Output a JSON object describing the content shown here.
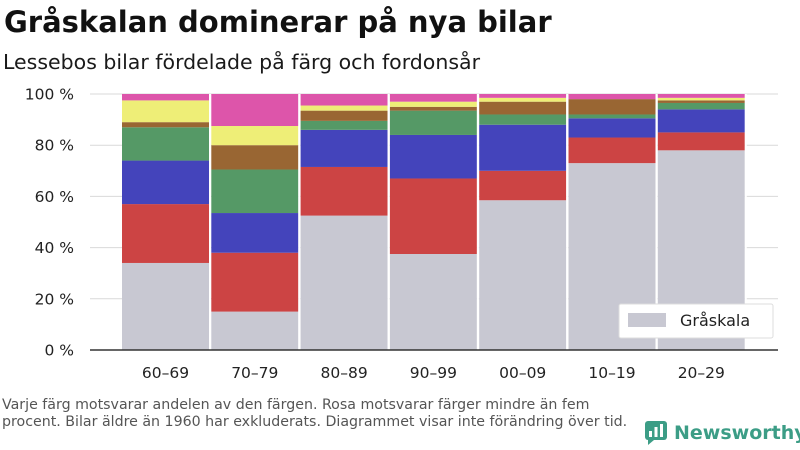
{
  "header": {
    "title": "Gråskalan dominerar på nya bilar",
    "subtitle": "Lessebos bilar fördelade på färg och fordonsår"
  },
  "footnote": "Varje färg motsvarar andelen av den färgen. Rosa motsvarar färger mindre än fem procent. Bilar äldre än 1960 har exkluderats. Diagrammet visar inte förändring över tid.",
  "brand": {
    "name": "Newsworthy",
    "icon": "bar-chart-logo-icon",
    "color": "#3c9d86"
  },
  "chart_data": {
    "type": "bar",
    "stacked": true,
    "normalized": true,
    "categories": [
      "60–69",
      "70–79",
      "80–89",
      "90–99",
      "00–09",
      "10–19",
      "20–29"
    ],
    "y_ticks": [
      "0 %",
      "20 %",
      "40 %",
      "60 %",
      "80 %",
      "100 %"
    ],
    "ylim": [
      0,
      100
    ],
    "grid": true,
    "legend": {
      "position": "bottom-right",
      "entries": [
        "Gråskala"
      ]
    },
    "series": [
      {
        "name": "Gråskala",
        "color": "#c8c8d2",
        "values": [
          34,
          15,
          52.5,
          37.5,
          58.5,
          73,
          78
        ]
      },
      {
        "color": "#cc4444",
        "values": [
          23,
          23,
          19,
          29.5,
          11.5,
          10,
          7
        ]
      },
      {
        "color": "#4444bb",
        "values": [
          17,
          15.5,
          14.5,
          17,
          18,
          7.5,
          9
        ]
      },
      {
        "color": "#559966",
        "values": [
          13,
          17,
          3.5,
          9.5,
          4,
          1.5,
          2.5
        ]
      },
      {
        "color": "#996633",
        "values": [
          2,
          9.5,
          4,
          1.5,
          5,
          6,
          1
        ]
      },
      {
        "color": "#eeee77",
        "values": [
          8.5,
          7.5,
          2,
          2,
          1.5,
          0,
          1
        ]
      },
      {
        "color": "#dd55aa",
        "values": [
          2.5,
          12.5,
          4.5,
          3,
          1.5,
          2,
          1.5
        ]
      }
    ]
  }
}
